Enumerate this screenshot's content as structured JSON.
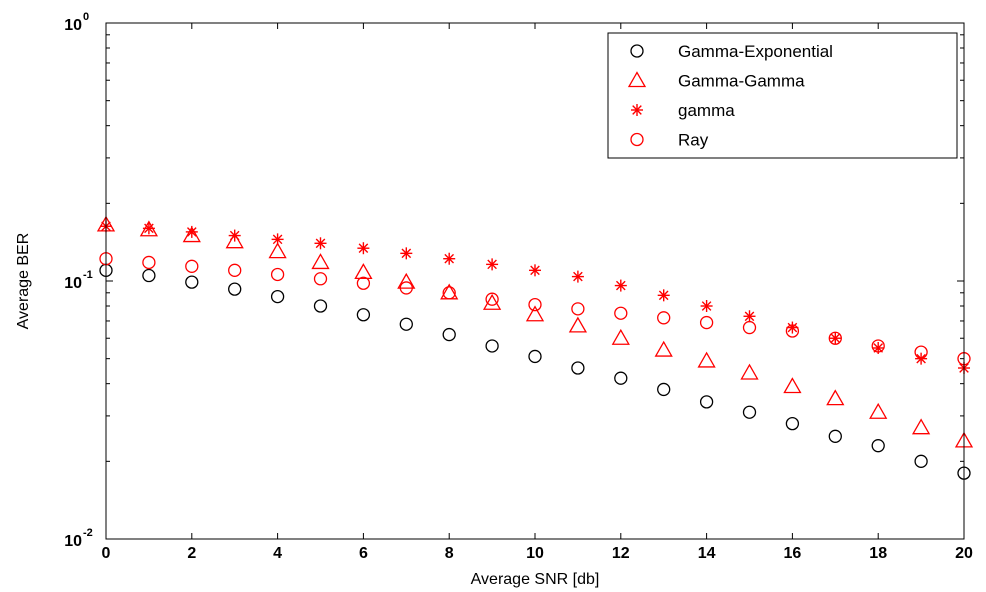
{
  "chart_data": {
    "type": "scatter",
    "title": "",
    "xlabel": "Average SNR [db]",
    "ylabel": "Average BER",
    "xlim": [
      0,
      20
    ],
    "ylim": [
      0.01,
      1
    ],
    "yscale": "log",
    "x_ticks": [
      0,
      2,
      4,
      6,
      8,
      10,
      12,
      14,
      16,
      18,
      20
    ],
    "y_ticks": [
      {
        "base": "10",
        "exp": "-2",
        "value": 0.01
      },
      {
        "base": "10",
        "exp": "-1",
        "value": 0.1
      },
      {
        "base": "10",
        "exp": "0",
        "value": 1
      }
    ],
    "grid": false,
    "legend_position": "top-right",
    "x": [
      0,
      1,
      2,
      3,
      4,
      5,
      6,
      7,
      8,
      9,
      10,
      11,
      12,
      13,
      14,
      15,
      16,
      17,
      18,
      19,
      20
    ],
    "series": [
      {
        "name": "Gamma-Exponential",
        "marker": "circle",
        "color": "#000000",
        "values": [
          0.11,
          0.105,
          0.099,
          0.093,
          0.087,
          0.08,
          0.074,
          0.068,
          0.062,
          0.056,
          0.051,
          0.046,
          0.042,
          0.038,
          0.034,
          0.031,
          0.028,
          0.025,
          0.023,
          0.02,
          0.018
        ]
      },
      {
        "name": "Gamma-Gamma",
        "marker": "triangle",
        "color": "#ff0000",
        "values": [
          0.165,
          0.158,
          0.15,
          0.142,
          0.13,
          0.118,
          0.108,
          0.099,
          0.09,
          0.082,
          0.074,
          0.067,
          0.06,
          0.054,
          0.049,
          0.044,
          0.039,
          0.035,
          0.031,
          0.027,
          0.024
        ]
      },
      {
        "name": "gamma",
        "marker": "star",
        "color": "#ff0000",
        "values": [
          0.163,
          0.16,
          0.155,
          0.15,
          0.145,
          0.14,
          0.134,
          0.128,
          0.122,
          0.116,
          0.11,
          0.104,
          0.096,
          0.088,
          0.08,
          0.073,
          0.066,
          0.06,
          0.055,
          0.05,
          0.046
        ]
      },
      {
        "name": "Ray",
        "marker": "circle",
        "color": "#ff0000",
        "values": [
          0.122,
          0.118,
          0.114,
          0.11,
          0.106,
          0.102,
          0.098,
          0.094,
          0.09,
          0.085,
          0.081,
          0.078,
          0.075,
          0.072,
          0.069,
          0.066,
          0.064,
          0.06,
          0.056,
          0.053,
          0.05
        ]
      }
    ]
  }
}
